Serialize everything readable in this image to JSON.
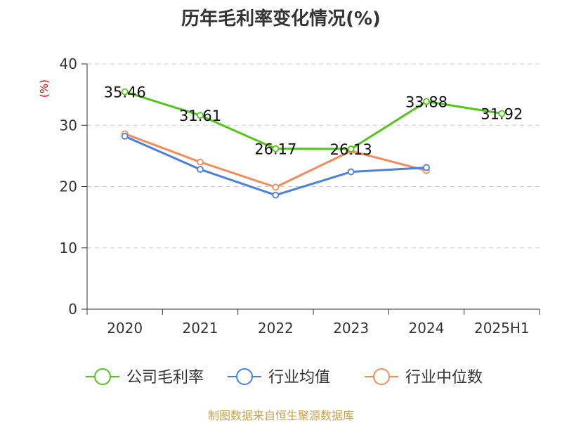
{
  "chart_data": {
    "type": "line",
    "title": "历年毛利率变化情况(%)",
    "ylabel": "(%)",
    "xlabel": "",
    "categories": [
      "2020",
      "2021",
      "2022",
      "2023",
      "2024",
      "2025H1"
    ],
    "ylim": [
      0,
      40
    ],
    "yticks": [
      "0",
      "10",
      "20",
      "30",
      "40"
    ],
    "grid": true,
    "legend_position": "bottom",
    "series": [
      {
        "name": "公司毛利率",
        "color": "#52c41a",
        "values": [
          35.46,
          31.61,
          26.17,
          26.13,
          33.88,
          31.92
        ],
        "labels": [
          "35.46",
          "31.61",
          "26.17",
          "26.13",
          "33.88",
          "31.92"
        ]
      },
      {
        "name": "行业均值",
        "color": "#4a7fe0",
        "values": [
          28.2,
          22.8,
          18.6,
          22.4,
          23.1,
          null
        ],
        "labels": []
      },
      {
        "name": "行业中位数",
        "color": "#f28c5b",
        "values": [
          28.6,
          24.0,
          19.9,
          25.8,
          22.6,
          null
        ],
        "labels": []
      }
    ]
  },
  "footer": {
    "source": "制图数据来自恒生聚源数据库"
  }
}
